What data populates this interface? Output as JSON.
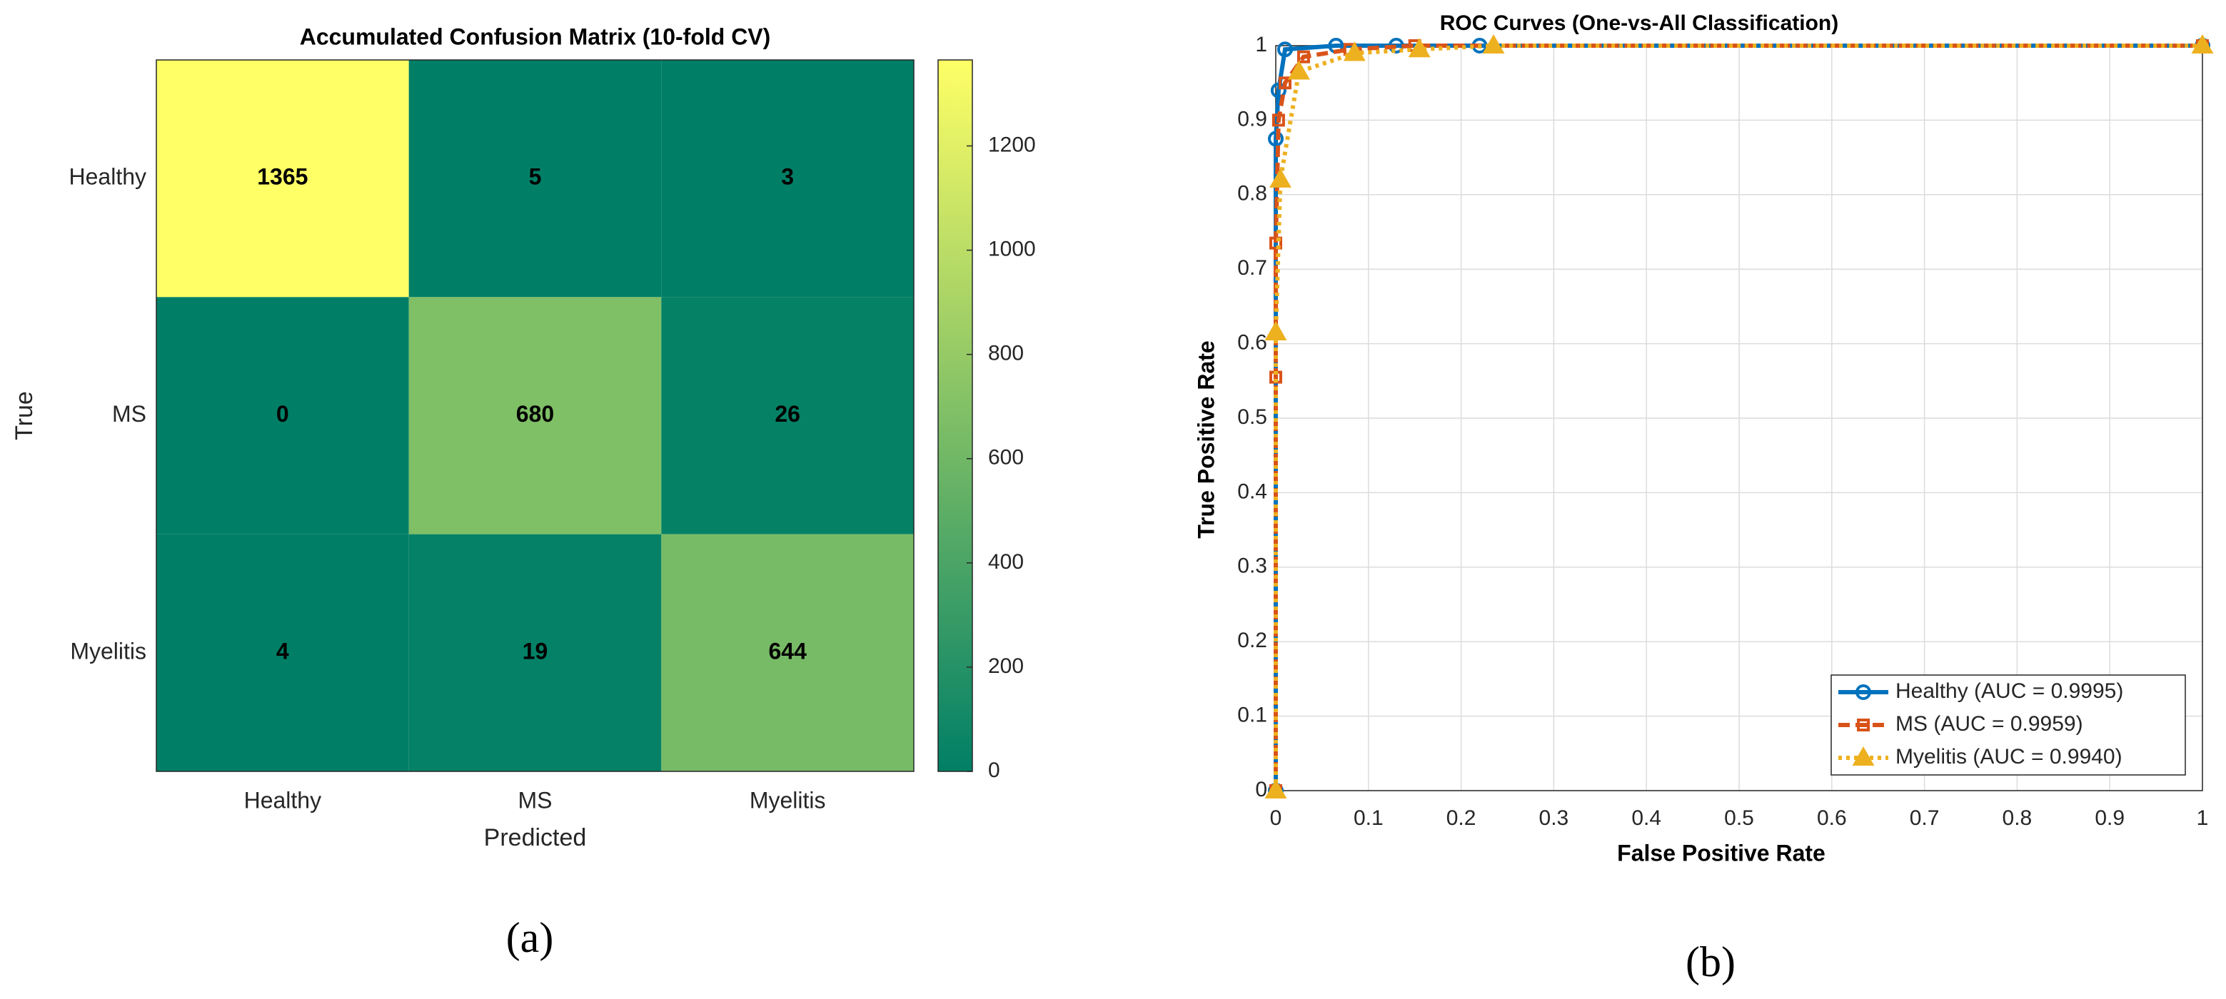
{
  "chart_data": [
    {
      "type": "heatmap",
      "title": "Accumulated Confusion Matrix (10-fold CV)",
      "panel_label": "(a)",
      "x_label": "Predicted",
      "y_label": "True",
      "x_categories": [
        "Healthy",
        "MS",
        "Myelitis"
      ],
      "y_categories": [
        "Healthy",
        "MS",
        "Myelitis"
      ],
      "values": [
        [
          1365,
          5,
          3
        ],
        [
          0,
          680,
          26
        ],
        [
          4,
          19,
          644
        ]
      ],
      "colormap": [
        "#007f66",
        "#ffff66"
      ],
      "clim": [
        0,
        1365
      ],
      "cticks": [
        0,
        200,
        400,
        600,
        800,
        1000,
        1200
      ]
    },
    {
      "type": "line",
      "title": "ROC Curves (One-vs-All Classification)",
      "panel_label": "(b)",
      "x_label": "False Positive Rate",
      "y_label": "True Positive Rate",
      "xlim": [
        0,
        1
      ],
      "ylim": [
        0,
        1
      ],
      "xticks": [
        0,
        0.1,
        0.2,
        0.3,
        0.4,
        0.5,
        0.6,
        0.7,
        0.8,
        0.9,
        1
      ],
      "yticks": [
        0,
        0.1,
        0.2,
        0.3,
        0.4,
        0.5,
        0.6,
        0.7,
        0.8,
        0.9,
        1
      ],
      "grid": true,
      "legend": "lower right",
      "series": [
        {
          "name": "Healthy (AUC = 0.9995)",
          "color": "#0072bd",
          "linestyle": "solid",
          "marker": "circle",
          "x": [
            0,
            0,
            0.003,
            0.01,
            0.065,
            0.13,
            0.22,
            1
          ],
          "y": [
            0,
            0.875,
            0.94,
            0.995,
            1,
            1,
            1,
            1
          ]
        },
        {
          "name": "MS (AUC = 0.9959)",
          "color": "#d95319",
          "linestyle": "dashed",
          "marker": "square",
          "x": [
            0,
            0,
            0,
            0.003,
            0.01,
            0.03,
            0.08,
            0.15,
            1
          ],
          "y": [
            0,
            0.555,
            0.735,
            0.9,
            0.95,
            0.985,
            0.995,
            1,
            1
          ]
        },
        {
          "name": "Myelitis (AUC = 0.9940)",
          "color": "#edb120",
          "linestyle": "dotted",
          "marker": "triangle",
          "x": [
            0,
            0,
            0.005,
            0.025,
            0.085,
            0.155,
            0.235,
            1
          ],
          "y": [
            0,
            0.615,
            0.82,
            0.965,
            0.99,
            0.995,
            1,
            1
          ]
        }
      ]
    }
  ]
}
